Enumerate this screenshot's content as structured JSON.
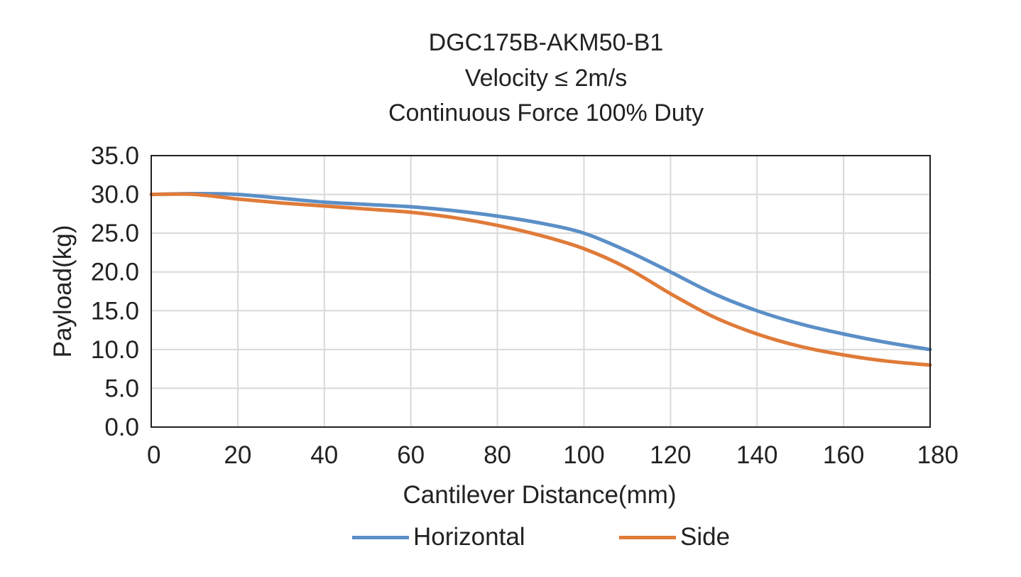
{
  "titles": {
    "line1": "DGC175B-AKM50-B1",
    "line2": "Velocity ≤ 2m/s",
    "line3": "Continuous Force 100% Duty"
  },
  "chart_data": {
    "type": "line",
    "title": "DGC175B-AKM50-B1 Velocity ≤ 2m/s Continuous Force 100% Duty",
    "xlabel": "Cantilever Distance(mm)",
    "ylabel": "Payload(kg)",
    "xlim": [
      0,
      180
    ],
    "ylim": [
      0,
      35
    ],
    "xticks": [
      "0",
      "20",
      "40",
      "60",
      "80",
      "100",
      "120",
      "140",
      "160",
      "180"
    ],
    "yticks": [
      "0.0",
      "5.0",
      "10.0",
      "15.0",
      "20.0",
      "25.0",
      "30.0",
      "35.0"
    ],
    "grid": true,
    "legend": "bottom",
    "series": [
      {
        "name": "Horizontal",
        "color": "#5b8fc7",
        "x": [
          0,
          10,
          20,
          30,
          40,
          50,
          60,
          70,
          80,
          90,
          100,
          110,
          120,
          130,
          140,
          150,
          160,
          170,
          180
        ],
        "y": [
          30.0,
          30.1,
          30.0,
          29.5,
          29.0,
          28.7,
          28.4,
          27.9,
          27.2,
          26.3,
          25.0,
          22.7,
          20.0,
          17.2,
          15.0,
          13.3,
          12.0,
          10.9,
          10.0
        ]
      },
      {
        "name": "Side",
        "color": "#e07b39",
        "x": [
          0,
          10,
          20,
          30,
          40,
          50,
          60,
          70,
          80,
          90,
          100,
          110,
          120,
          130,
          140,
          150,
          160,
          170,
          180
        ],
        "y": [
          30.0,
          30.0,
          29.4,
          28.9,
          28.5,
          28.1,
          27.7,
          27.0,
          26.0,
          24.7,
          23.0,
          20.5,
          17.2,
          14.2,
          12.0,
          10.4,
          9.3,
          8.5,
          8.0
        ]
      }
    ]
  }
}
